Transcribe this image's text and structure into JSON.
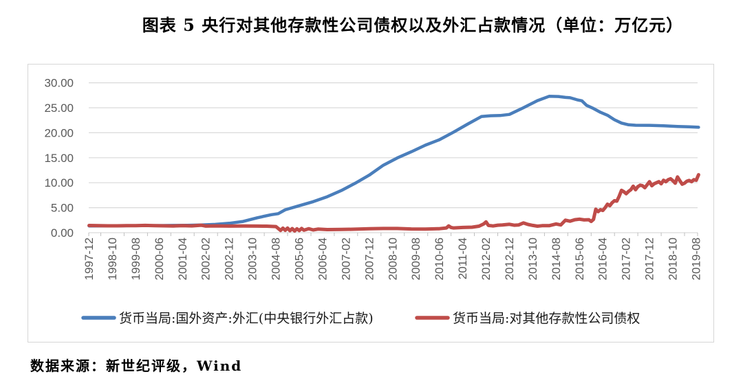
{
  "title": "图表 5  央行对其他存款性公司债权以及外汇占款情况（单位：万亿元）",
  "source": "数据来源：新世纪评级，Wind",
  "colors": {
    "series_fx_blue": "#4a7ebb",
    "series_claims_red": "#bf4c49",
    "gridline": "#d9d9d9",
    "tick": "#bfbfbf",
    "axis_label": "#595959",
    "frame_border": "#d6d6d6",
    "legend_text": "#1a1a1a"
  },
  "chart_data": {
    "type": "line",
    "title": "央行对其他存款性公司债权以及外汇占款情况",
    "unit": "万亿元",
    "grid": "horizontal-only",
    "legend_position": "bottom",
    "ylim": [
      0,
      30
    ],
    "y_tick_values": [
      30,
      25,
      20,
      15,
      10,
      5,
      0
    ],
    "y_tick_labels": [
      "30.00",
      "25.00",
      "20.00",
      "15.00",
      "10.00",
      "5.00",
      "0.00"
    ],
    "x_tick_labels": [
      "1997-12",
      "1998-10",
      "1999-08",
      "2000-06",
      "2001-04",
      "2002-02",
      "2002-12",
      "2003-10",
      "2004-08",
      "2005-06",
      "2006-04",
      "2007-02",
      "2007-12",
      "2008-10",
      "2009-08",
      "2010-06",
      "2011-04",
      "2012-02",
      "2012-12",
      "2013-10",
      "2014-08",
      "2015-06",
      "2016-04",
      "2017-02",
      "2017-12",
      "2018-10",
      "2019-08"
    ],
    "series": [
      {
        "name": "货币当局:国外资产:外汇(中央银行外汇占款)",
        "color": "#4a7ebb",
        "points": [
          [
            "1997-12",
            1.34
          ],
          [
            "1998-06",
            1.36
          ],
          [
            "1998-12",
            1.38
          ],
          [
            "1999-06",
            1.4
          ],
          [
            "1999-12",
            1.41
          ],
          [
            "2000-06",
            1.43
          ],
          [
            "2000-12",
            1.45
          ],
          [
            "2001-06",
            1.49
          ],
          [
            "2001-12",
            1.55
          ],
          [
            "2002-06",
            1.66
          ],
          [
            "2002-12",
            1.88
          ],
          [
            "2003-06",
            2.25
          ],
          [
            "2003-12",
            2.98
          ],
          [
            "2004-06",
            3.6
          ],
          [
            "2004-09",
            3.8
          ],
          [
            "2004-12",
            4.59
          ],
          [
            "2005-06",
            5.4
          ],
          [
            "2005-12",
            6.21
          ],
          [
            "2006-06",
            7.2
          ],
          [
            "2006-12",
            8.44
          ],
          [
            "2007-06",
            9.9
          ],
          [
            "2007-12",
            11.52
          ],
          [
            "2008-06",
            13.5
          ],
          [
            "2008-12",
            14.96
          ],
          [
            "2009-06",
            16.2
          ],
          [
            "2009-12",
            17.52
          ],
          [
            "2010-06",
            18.6
          ],
          [
            "2010-12",
            20.09
          ],
          [
            "2011-06",
            21.7
          ],
          [
            "2011-12",
            23.24
          ],
          [
            "2012-04",
            23.4
          ],
          [
            "2012-08",
            23.45
          ],
          [
            "2012-12",
            23.67
          ],
          [
            "2013-06",
            25.0
          ],
          [
            "2013-12",
            26.43
          ],
          [
            "2014-05",
            27.3
          ],
          [
            "2014-09",
            27.25
          ],
          [
            "2014-12",
            27.07
          ],
          [
            "2015-02",
            27.0
          ],
          [
            "2015-05",
            26.6
          ],
          [
            "2015-07",
            26.4
          ],
          [
            "2015-09",
            25.5
          ],
          [
            "2015-12",
            24.85
          ],
          [
            "2016-03",
            24.1
          ],
          [
            "2016-06",
            23.5
          ],
          [
            "2016-09",
            22.6
          ],
          [
            "2016-12",
            21.94
          ],
          [
            "2017-03",
            21.6
          ],
          [
            "2017-06",
            21.5
          ],
          [
            "2017-12",
            21.48
          ],
          [
            "2018-06",
            21.4
          ],
          [
            "2018-12",
            21.26
          ],
          [
            "2019-05",
            21.2
          ],
          [
            "2019-09",
            21.1
          ]
        ]
      },
      {
        "name": "货币当局:对其他存款性公司债权",
        "color": "#bf4c49",
        "points": [
          [
            "1997-12",
            1.44
          ],
          [
            "1998-04",
            1.41
          ],
          [
            "1998-08",
            1.38
          ],
          [
            "1998-12",
            1.37
          ],
          [
            "1999-04",
            1.42
          ],
          [
            "1999-08",
            1.4
          ],
          [
            "1999-12",
            1.46
          ],
          [
            "2000-04",
            1.42
          ],
          [
            "2000-08",
            1.38
          ],
          [
            "2000-12",
            1.35
          ],
          [
            "2001-04",
            1.4
          ],
          [
            "2001-08",
            1.36
          ],
          [
            "2001-12",
            1.5
          ],
          [
            "2002-02",
            1.32
          ],
          [
            "2002-06",
            1.36
          ],
          [
            "2002-12",
            1.32
          ],
          [
            "2003-06",
            1.35
          ],
          [
            "2003-12",
            1.32
          ],
          [
            "2004-04",
            1.3
          ],
          [
            "2004-08",
            1.22
          ],
          [
            "2004-09",
            0.85
          ],
          [
            "2004-10",
            0.45
          ],
          [
            "2004-11",
            0.9
          ],
          [
            "2004-12",
            0.48
          ],
          [
            "2005-01",
            0.92
          ],
          [
            "2005-02",
            0.4
          ],
          [
            "2005-03",
            0.82
          ],
          [
            "2005-04",
            0.35
          ],
          [
            "2005-05",
            0.78
          ],
          [
            "2005-06",
            0.42
          ],
          [
            "2005-07",
            0.85
          ],
          [
            "2005-08",
            0.5
          ],
          [
            "2005-10",
            0.8
          ],
          [
            "2005-12",
            0.55
          ],
          [
            "2006-02",
            0.72
          ],
          [
            "2006-06",
            0.62
          ],
          [
            "2006-12",
            0.64
          ],
          [
            "2007-06",
            0.7
          ],
          [
            "2007-12",
            0.79
          ],
          [
            "2008-06",
            0.84
          ],
          [
            "2008-12",
            0.84
          ],
          [
            "2009-06",
            0.74
          ],
          [
            "2009-12",
            0.71
          ],
          [
            "2010-06",
            0.8
          ],
          [
            "2010-09",
            0.95
          ],
          [
            "2010-10",
            1.35
          ],
          [
            "2010-11",
            1.05
          ],
          [
            "2010-12",
            0.95
          ],
          [
            "2011-04",
            1.05
          ],
          [
            "2011-08",
            1.1
          ],
          [
            "2011-11",
            1.3
          ],
          [
            "2012-01",
            1.75
          ],
          [
            "2012-02",
            2.15
          ],
          [
            "2012-03",
            1.45
          ],
          [
            "2012-05",
            1.35
          ],
          [
            "2012-07",
            1.5
          ],
          [
            "2012-09",
            1.55
          ],
          [
            "2012-12",
            1.67
          ],
          [
            "2013-02",
            1.5
          ],
          [
            "2013-04",
            1.55
          ],
          [
            "2013-06",
            1.95
          ],
          [
            "2013-08",
            1.65
          ],
          [
            "2013-10",
            1.45
          ],
          [
            "2013-12",
            1.31
          ],
          [
            "2014-02",
            1.4
          ],
          [
            "2014-05",
            1.4
          ],
          [
            "2014-08",
            1.75
          ],
          [
            "2014-10",
            1.55
          ],
          [
            "2014-12",
            2.5
          ],
          [
            "2015-02",
            2.3
          ],
          [
            "2015-04",
            2.6
          ],
          [
            "2015-06",
            2.7
          ],
          [
            "2015-08",
            2.55
          ],
          [
            "2015-10",
            2.6
          ],
          [
            "2015-11",
            2.25
          ],
          [
            "2015-12",
            2.66
          ],
          [
            "2016-01",
            4.7
          ],
          [
            "2016-02",
            4.2
          ],
          [
            "2016-03",
            4.6
          ],
          [
            "2016-04",
            4.45
          ],
          [
            "2016-05",
            5.0
          ],
          [
            "2016-06",
            5.7
          ],
          [
            "2016-07",
            5.4
          ],
          [
            "2016-08",
            6.0
          ],
          [
            "2016-09",
            6.4
          ],
          [
            "2016-10",
            6.3
          ],
          [
            "2016-11",
            7.3
          ],
          [
            "2016-12",
            8.47
          ],
          [
            "2017-01",
            8.2
          ],
          [
            "2017-02",
            7.8
          ],
          [
            "2017-03",
            8.25
          ],
          [
            "2017-04",
            8.6
          ],
          [
            "2017-05",
            9.3
          ],
          [
            "2017-06",
            8.6
          ],
          [
            "2017-07",
            9.2
          ],
          [
            "2017-08",
            9.5
          ],
          [
            "2017-09",
            9.4
          ],
          [
            "2017-10",
            9.0
          ],
          [
            "2017-11",
            9.6
          ],
          [
            "2017-12",
            10.2
          ],
          [
            "2018-01",
            9.4
          ],
          [
            "2018-02",
            9.8
          ],
          [
            "2018-03",
            10.0
          ],
          [
            "2018-04",
            10.2
          ],
          [
            "2018-05",
            9.8
          ],
          [
            "2018-06",
            10.5
          ],
          [
            "2018-07",
            10.2
          ],
          [
            "2018-08",
            10.6
          ],
          [
            "2018-09",
            10.8
          ],
          [
            "2018-10",
            10.4
          ],
          [
            "2018-11",
            9.9
          ],
          [
            "2018-12",
            11.15
          ],
          [
            "2019-01",
            10.4
          ],
          [
            "2019-02",
            9.7
          ],
          [
            "2019-03",
            9.9
          ],
          [
            "2019-04",
            10.3
          ],
          [
            "2019-05",
            10.45
          ],
          [
            "2019-06",
            10.2
          ],
          [
            "2019-07",
            10.6
          ],
          [
            "2019-08",
            10.5
          ],
          [
            "2019-09",
            11.6
          ]
        ]
      }
    ]
  }
}
